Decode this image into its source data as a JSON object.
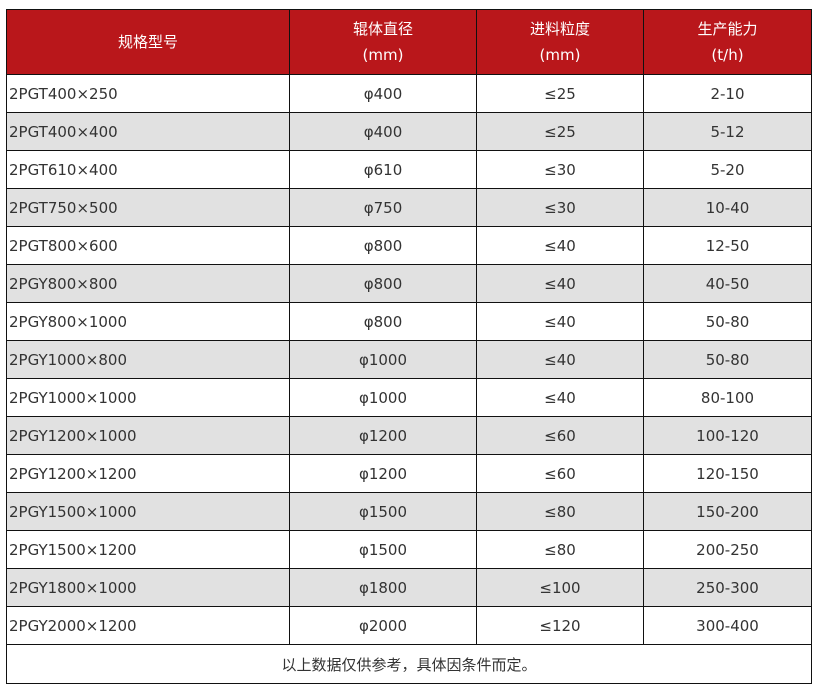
{
  "header": [
    {
      "line1": "规格型号",
      "line2": ""
    },
    {
      "line1": "辊体直径",
      "line2": "(mm)"
    },
    {
      "line1": "进料粒度",
      "line2": "(mm)"
    },
    {
      "line1": "生产能力",
      "line2": "(t/h)"
    }
  ],
  "colors": {
    "header_bg": "#b9171b",
    "alt_row_bg": "#e1e1e1"
  },
  "rows": [
    [
      "2PGT400×250",
      "φ400",
      "≤25",
      "2-10"
    ],
    [
      "2PGT400×400",
      "φ400",
      "≤25",
      "5-12"
    ],
    [
      "2PGT610×400",
      "φ610",
      "≤30",
      "5-20"
    ],
    [
      "2PGT750×500",
      "φ750",
      "≤30",
      "10-40"
    ],
    [
      "2PGT800×600",
      "φ800",
      "≤40",
      "12-50"
    ],
    [
      "2PGY800×800",
      "φ800",
      "≤40",
      "40-50"
    ],
    [
      "2PGY800×1000",
      "φ800",
      "≤40",
      "50-80"
    ],
    [
      "2PGY1000×800",
      "φ1000",
      "≤40",
      "50-80"
    ],
    [
      "2PGY1000×1000",
      "φ1000",
      "≤40",
      "80-100"
    ],
    [
      "2PGY1200×1000",
      "φ1200",
      "≤60",
      "100-120"
    ],
    [
      "2PGY1200×1200",
      "φ1200",
      "≤60",
      "120-150"
    ],
    [
      "2PGY1500×1000",
      "φ1500",
      "≤80",
      "150-200"
    ],
    [
      "2PGY1500×1200",
      "φ1500",
      "≤80",
      "200-250"
    ],
    [
      "2PGY1800×1000",
      "φ1800",
      "≤100",
      "250-300"
    ],
    [
      "2PGY2000×1200",
      "φ2000",
      "≤120",
      "300-400"
    ]
  ],
  "footer": "以上数据仅供参考，具体因条件而定。"
}
